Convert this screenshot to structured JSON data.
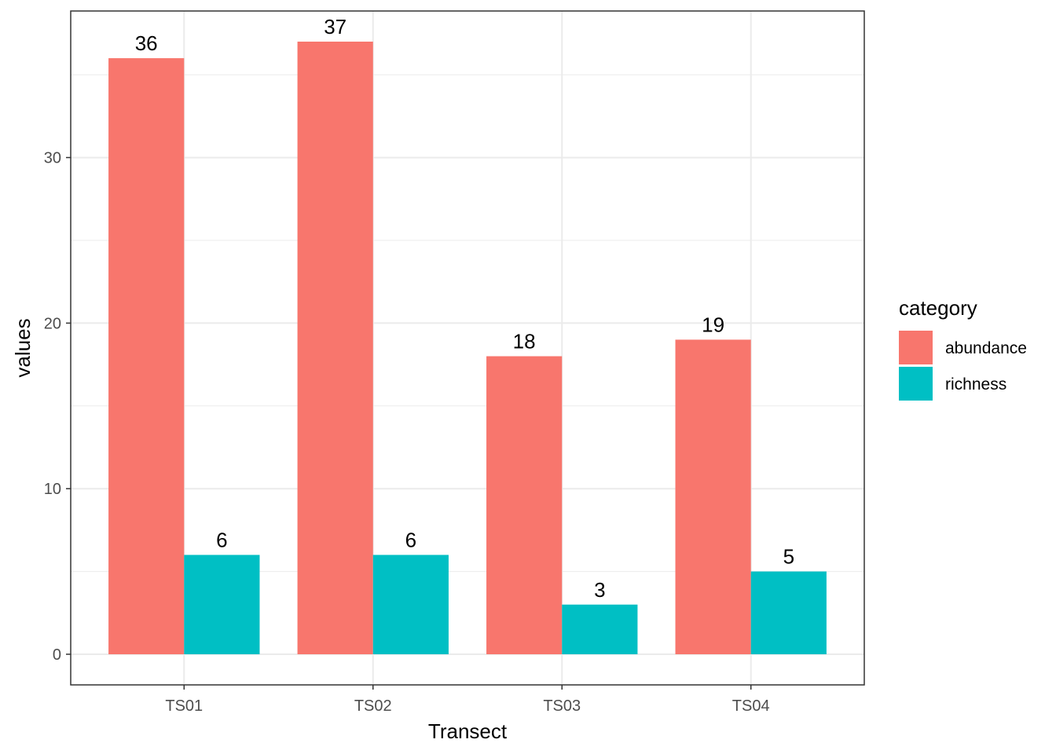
{
  "chart_data": {
    "type": "bar",
    "xlabel": "Transect",
    "ylabel": "values",
    "categories": [
      "TS01",
      "TS02",
      "TS03",
      "TS04"
    ],
    "series": [
      {
        "name": "abundance",
        "values": [
          36,
          37,
          18,
          19
        ],
        "color": "#F8766D"
      },
      {
        "name": "richness",
        "values": [
          6,
          6,
          3,
          5
        ],
        "color": "#00BFC4"
      }
    ],
    "ylim": [
      -1.85,
      38.85
    ],
    "yticks": [
      0,
      10,
      20,
      30
    ],
    "grid": true,
    "legend": {
      "title": "category",
      "position": "right"
    }
  }
}
